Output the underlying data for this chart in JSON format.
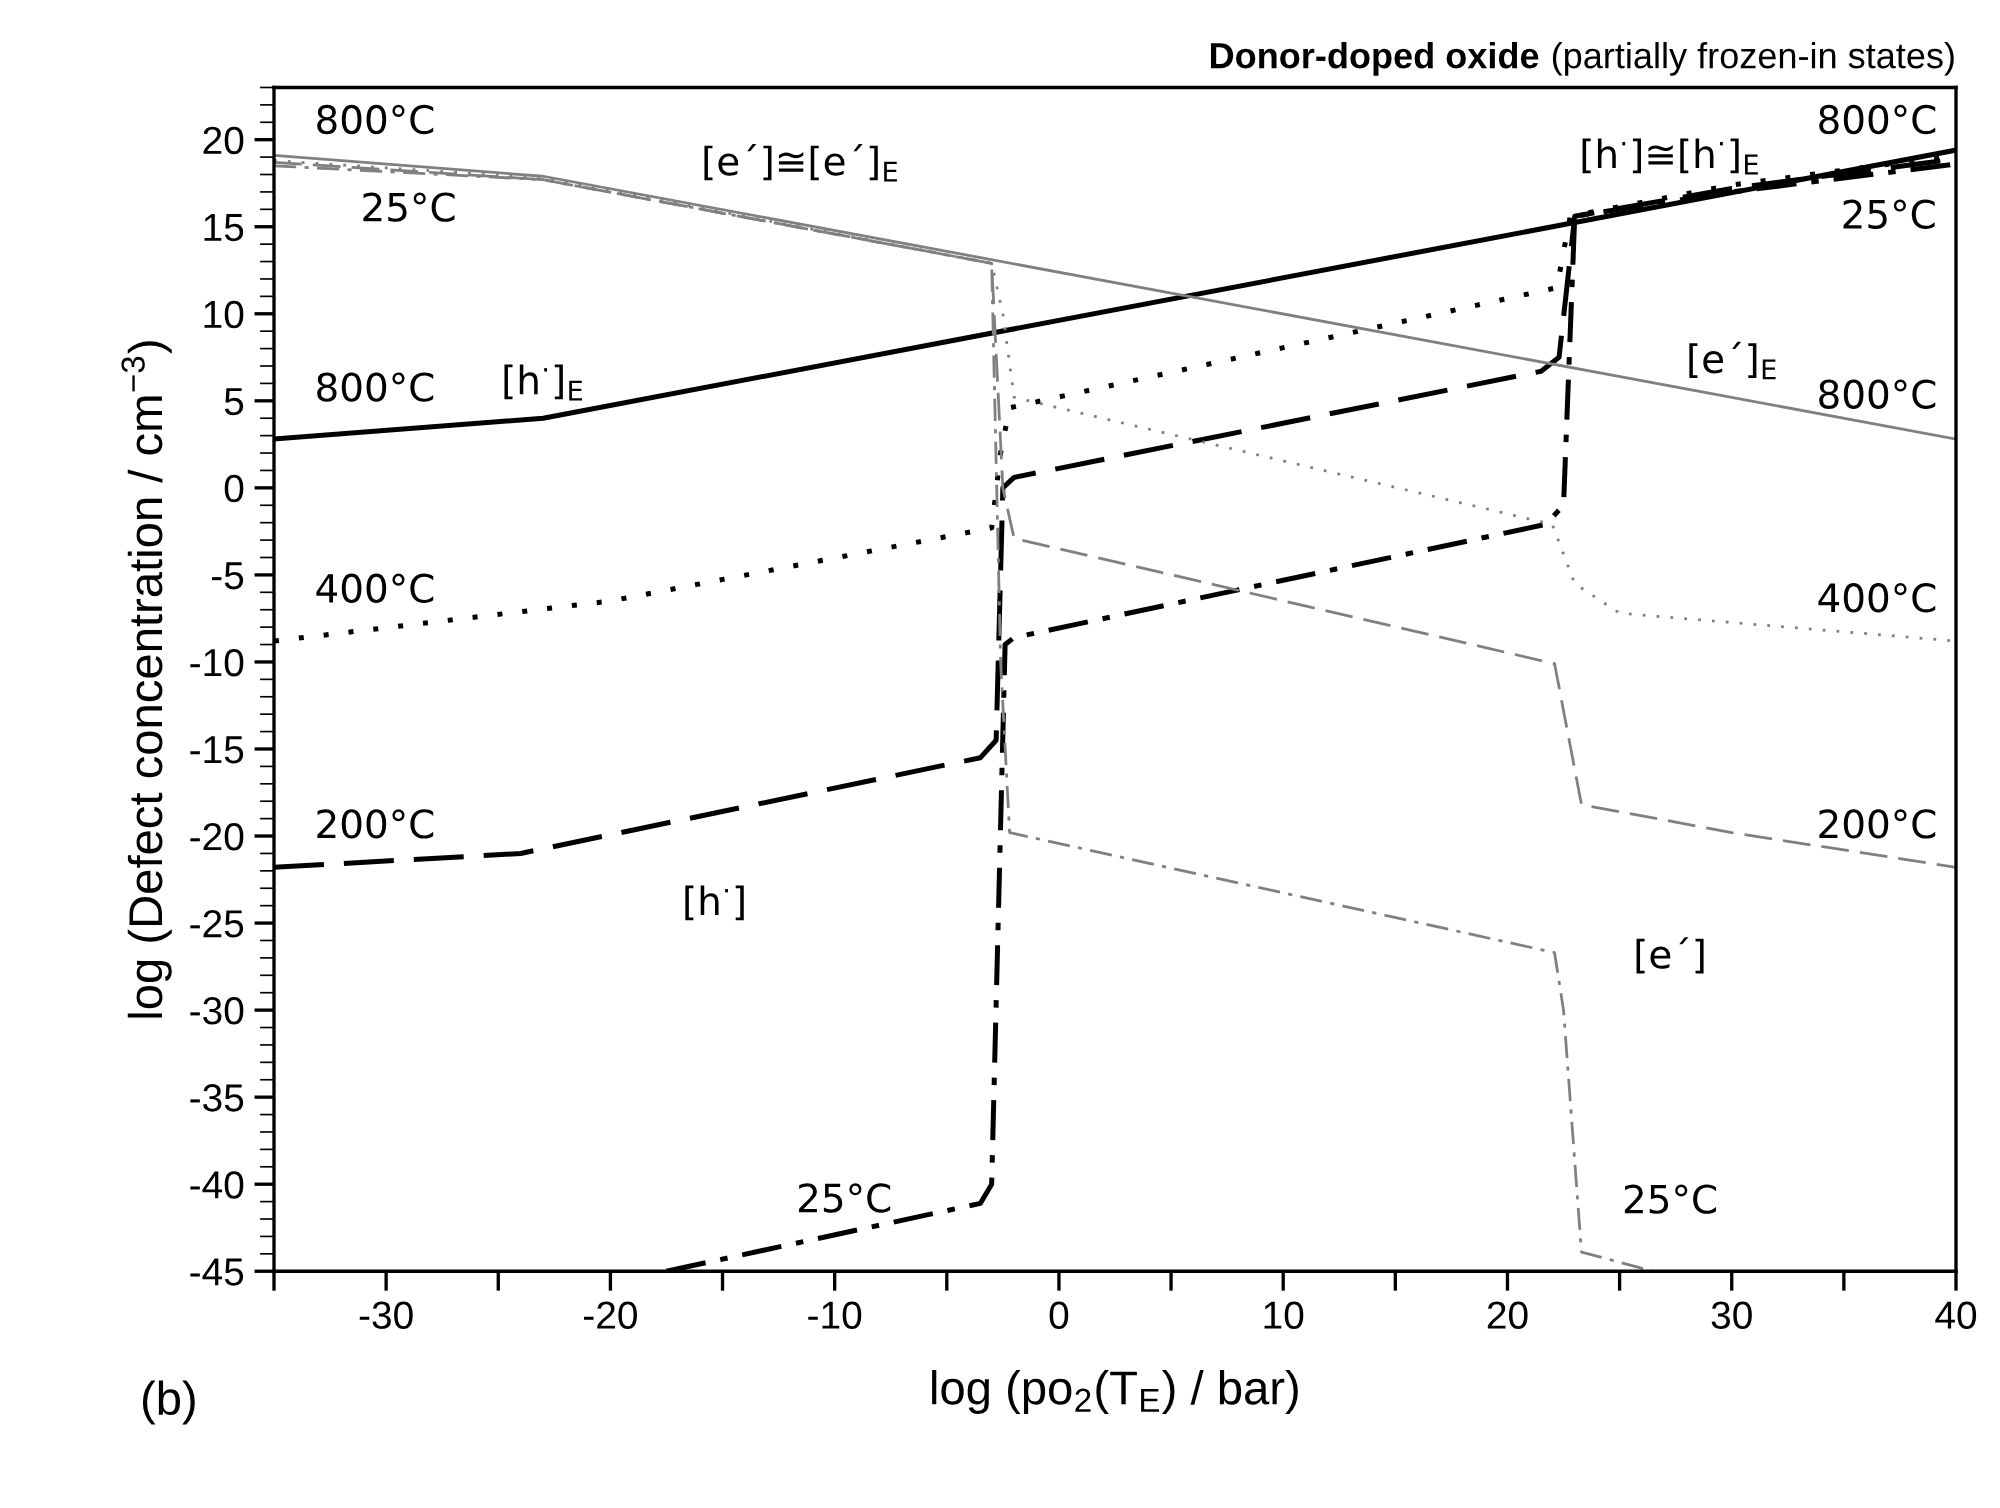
{
  "chart_data": {
    "type": "line",
    "title": "Donor-doped oxide",
    "subtitle": "(partially frozen-in states)",
    "xlabel": "log (po$_{2}$(T$_{E}$) / bar)",
    "ylabel": "log (Defect concentration / cm$^{−3}$)",
    "xlim": [
      -35,
      40
    ],
    "ylim": [
      -45,
      23
    ],
    "xticks": [
      {
        "value": -35,
        "label": null
      },
      -30,
      {
        "value": -25,
        "label": null
      },
      -20,
      {
        "value": -15,
        "label": null
      },
      -10,
      {
        "value": -5,
        "label": null
      },
      0,
      {
        "value": 5,
        "label": null
      },
      10,
      {
        "value": 15,
        "label": null
      },
      20,
      {
        "value": 25,
        "label": null
      },
      30,
      {
        "value": 35,
        "label": null
      },
      40
    ],
    "yticks": [
      -45,
      -40,
      -35,
      -30,
      -25,
      -20,
      -15,
      -10,
      -5,
      0,
      5,
      10,
      15,
      20
    ],
    "grid": false,
    "marker": "none",
    "series": [
      {
        "color": "#000000",
        "line_style": "solid",
        "x": [
          -35,
          -23,
          40
        ],
        "values": [
          2.8,
          4.0,
          19.4
        ]
      },
      {
        "color": "#000000",
        "line_style": "dotted",
        "x": [
          -35,
          -20,
          -3,
          -2.6,
          -2.2,
          22.2,
          22.8,
          30,
          40
        ],
        "values": [
          -8.8,
          -6.5,
          -2.3,
          2,
          4.6,
          11.5,
          15.6,
          17.4,
          19.1
        ]
      },
      {
        "color": "#000000",
        "line_style": "dashed",
        "x": [
          -35,
          -24,
          -3.5,
          -2.8,
          -2.5,
          -2,
          21.5,
          22.3,
          23,
          30,
          40
        ],
        "values": [
          -21.8,
          -21,
          -15.5,
          -14.5,
          0,
          0.6,
          6.7,
          7.5,
          15.6,
          17.2,
          18.9
        ]
      },
      {
        "color": "#000000",
        "line_style": "dashdot",
        "x": [
          -17.5,
          -3.5,
          -3,
          -2.4,
          -2,
          21.7,
          22.5,
          23,
          30,
          40
        ],
        "values": [
          -45,
          -41.1,
          -40,
          -9,
          -8.6,
          -2.1,
          -1,
          15.6,
          17,
          18.6
        ]
      },
      {
        "color": "#808080",
        "line_style": "solid",
        "x": [
          -35,
          -23,
          40
        ],
        "values": [
          19.1,
          17.9,
          2.8
        ]
      },
      {
        "color": "#808080",
        "line_style": "dotted",
        "x": [
          -35,
          -23,
          -3,
          -2.5,
          -2,
          22,
          23,
          25,
          40
        ],
        "values": [
          18.8,
          17.8,
          12.9,
          10,
          5.2,
          -2.1,
          -5.5,
          -7.2,
          -8.8
        ]
      },
      {
        "color": "#808080",
        "line_style": "dashed",
        "x": [
          -35,
          -23,
          -3,
          -2.5,
          -2,
          22.1,
          23.3,
          30,
          40
        ],
        "values": [
          18.7,
          17.7,
          12.9,
          0,
          -2.9,
          -10.1,
          -18.2,
          -19.8,
          -21.8
        ]
      },
      {
        "color": "#808080",
        "line_style": "dashdot",
        "x": [
          -35,
          -23,
          -3,
          -2.6,
          -2.2,
          22.1,
          22.5,
          23.3,
          26.5
        ],
        "values": [
          18.5,
          17.7,
          12.9,
          -10,
          -19.8,
          -26.7,
          -30,
          -43.9,
          -45
        ]
      }
    ],
    "annotations": [
      "800°C",
      "25°C",
      "[e´]≅[e´]$_{E}$",
      "800°C",
      "[h$^{·}$]$_{E}$",
      "400°C",
      "200°C",
      "[h$^{·}$]",
      "25°C",
      "[h$^{·}$]≅[h$^{·}$]$_{E}$",
      "800°C",
      "25°C",
      "[e´]$_{E}$",
      "800°C",
      "400°C",
      "200°C",
      "[e´]",
      "25°C",
      "(b)"
    ]
  }
}
